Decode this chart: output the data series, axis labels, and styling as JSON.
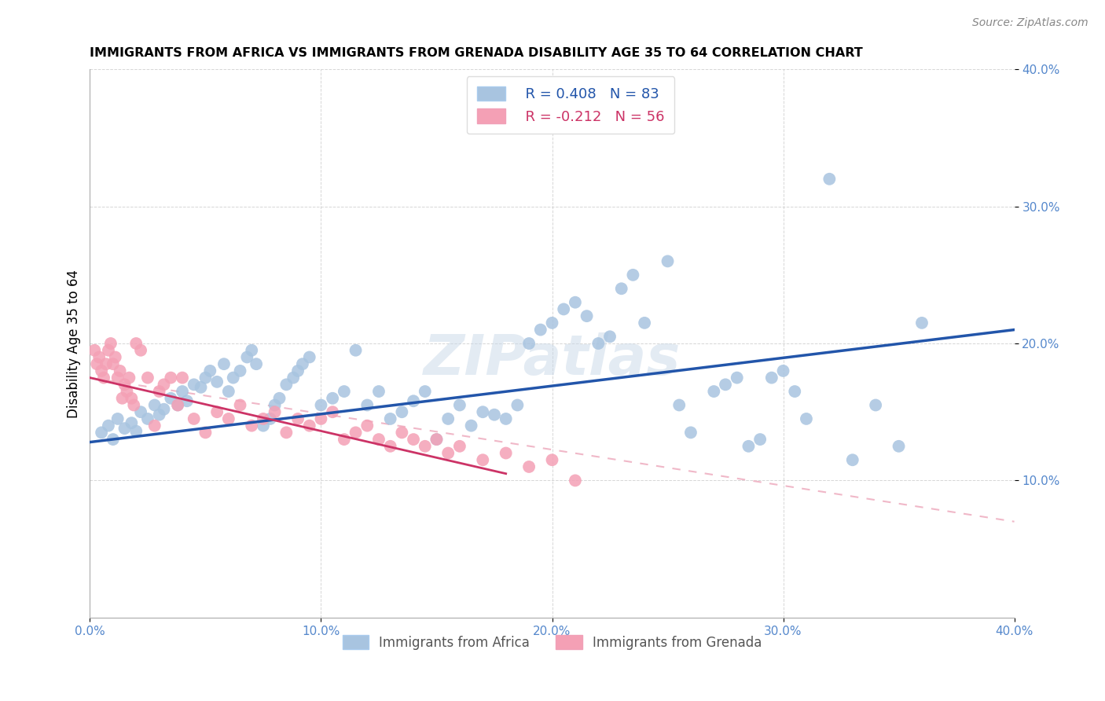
{
  "title": "IMMIGRANTS FROM AFRICA VS IMMIGRANTS FROM GRENADA DISABILITY AGE 35 TO 64 CORRELATION CHART",
  "source": "Source: ZipAtlas.com",
  "ylabel": "Disability Age 35 to 64",
  "xlim": [
    0.0,
    0.4
  ],
  "ylim": [
    0.0,
    0.4
  ],
  "xtick_labels": [
    "0.0%",
    "10.0%",
    "20.0%",
    "30.0%",
    "40.0%"
  ],
  "xtick_vals": [
    0.0,
    0.1,
    0.2,
    0.3,
    0.4
  ],
  "ytick_labels": [
    "10.0%",
    "20.0%",
    "30.0%",
    "40.0%"
  ],
  "ytick_vals": [
    0.1,
    0.2,
    0.3,
    0.4
  ],
  "africa_color": "#a8c4e0",
  "grenada_color": "#f4a0b5",
  "africa_line_color": "#2255aa",
  "grenada_line_color": "#cc3366",
  "grenada_dashed_color": "#f0b8c8",
  "legend_africa_R": "R = 0.408",
  "legend_africa_N": "N = 83",
  "legend_grenada_R": "R = -0.212",
  "legend_grenada_N": "N = 56",
  "watermark": "ZIPatlas",
  "africa_scatter_x": [
    0.005,
    0.008,
    0.01,
    0.012,
    0.015,
    0.018,
    0.02,
    0.022,
    0.025,
    0.028,
    0.03,
    0.032,
    0.035,
    0.038,
    0.04,
    0.042,
    0.045,
    0.048,
    0.05,
    0.052,
    0.055,
    0.058,
    0.06,
    0.062,
    0.065,
    0.068,
    0.07,
    0.072,
    0.075,
    0.078,
    0.08,
    0.082,
    0.085,
    0.088,
    0.09,
    0.092,
    0.095,
    0.1,
    0.105,
    0.11,
    0.115,
    0.12,
    0.125,
    0.13,
    0.135,
    0.14,
    0.145,
    0.15,
    0.155,
    0.16,
    0.165,
    0.17,
    0.175,
    0.18,
    0.185,
    0.19,
    0.195,
    0.2,
    0.205,
    0.21,
    0.215,
    0.22,
    0.225,
    0.23,
    0.235,
    0.24,
    0.25,
    0.255,
    0.26,
    0.27,
    0.275,
    0.28,
    0.285,
    0.29,
    0.295,
    0.3,
    0.305,
    0.31,
    0.32,
    0.33,
    0.34,
    0.35,
    0.36
  ],
  "africa_scatter_y": [
    0.135,
    0.14,
    0.13,
    0.145,
    0.138,
    0.142,
    0.136,
    0.15,
    0.145,
    0.155,
    0.148,
    0.152,
    0.16,
    0.155,
    0.165,
    0.158,
    0.17,
    0.168,
    0.175,
    0.18,
    0.172,
    0.185,
    0.165,
    0.175,
    0.18,
    0.19,
    0.195,
    0.185,
    0.14,
    0.145,
    0.155,
    0.16,
    0.17,
    0.175,
    0.18,
    0.185,
    0.19,
    0.155,
    0.16,
    0.165,
    0.195,
    0.155,
    0.165,
    0.145,
    0.15,
    0.158,
    0.165,
    0.13,
    0.145,
    0.155,
    0.14,
    0.15,
    0.148,
    0.145,
    0.155,
    0.2,
    0.21,
    0.215,
    0.225,
    0.23,
    0.22,
    0.2,
    0.205,
    0.24,
    0.25,
    0.215,
    0.26,
    0.155,
    0.135,
    0.165,
    0.17,
    0.175,
    0.125,
    0.13,
    0.175,
    0.18,
    0.165,
    0.145,
    0.32,
    0.115,
    0.155,
    0.125,
    0.215
  ],
  "grenada_scatter_x": [
    0.002,
    0.003,
    0.004,
    0.005,
    0.006,
    0.007,
    0.008,
    0.009,
    0.01,
    0.011,
    0.012,
    0.013,
    0.014,
    0.015,
    0.016,
    0.017,
    0.018,
    0.019,
    0.02,
    0.022,
    0.025,
    0.028,
    0.03,
    0.032,
    0.035,
    0.038,
    0.04,
    0.045,
    0.05,
    0.055,
    0.06,
    0.065,
    0.07,
    0.075,
    0.08,
    0.085,
    0.09,
    0.095,
    0.1,
    0.105,
    0.11,
    0.115,
    0.12,
    0.125,
    0.13,
    0.135,
    0.14,
    0.145,
    0.15,
    0.155,
    0.16,
    0.17,
    0.18,
    0.19,
    0.2,
    0.21
  ],
  "grenada_scatter_y": [
    0.195,
    0.185,
    0.19,
    0.18,
    0.175,
    0.185,
    0.195,
    0.2,
    0.185,
    0.19,
    0.175,
    0.18,
    0.16,
    0.17,
    0.165,
    0.175,
    0.16,
    0.155,
    0.2,
    0.195,
    0.175,
    0.14,
    0.165,
    0.17,
    0.175,
    0.155,
    0.175,
    0.145,
    0.135,
    0.15,
    0.145,
    0.155,
    0.14,
    0.145,
    0.15,
    0.135,
    0.145,
    0.14,
    0.145,
    0.15,
    0.13,
    0.135,
    0.14,
    0.13,
    0.125,
    0.135,
    0.13,
    0.125,
    0.13,
    0.12,
    0.125,
    0.115,
    0.12,
    0.11,
    0.115,
    0.1
  ],
  "africa_line_x": [
    0.0,
    0.4
  ],
  "africa_line_y": [
    0.128,
    0.21
  ],
  "grenada_line_x": [
    0.0,
    0.18
  ],
  "grenada_line_y": [
    0.175,
    0.105
  ],
  "grenada_dashed_line_x": [
    0.0,
    0.4
  ],
  "grenada_dashed_line_y": [
    0.175,
    0.07
  ]
}
